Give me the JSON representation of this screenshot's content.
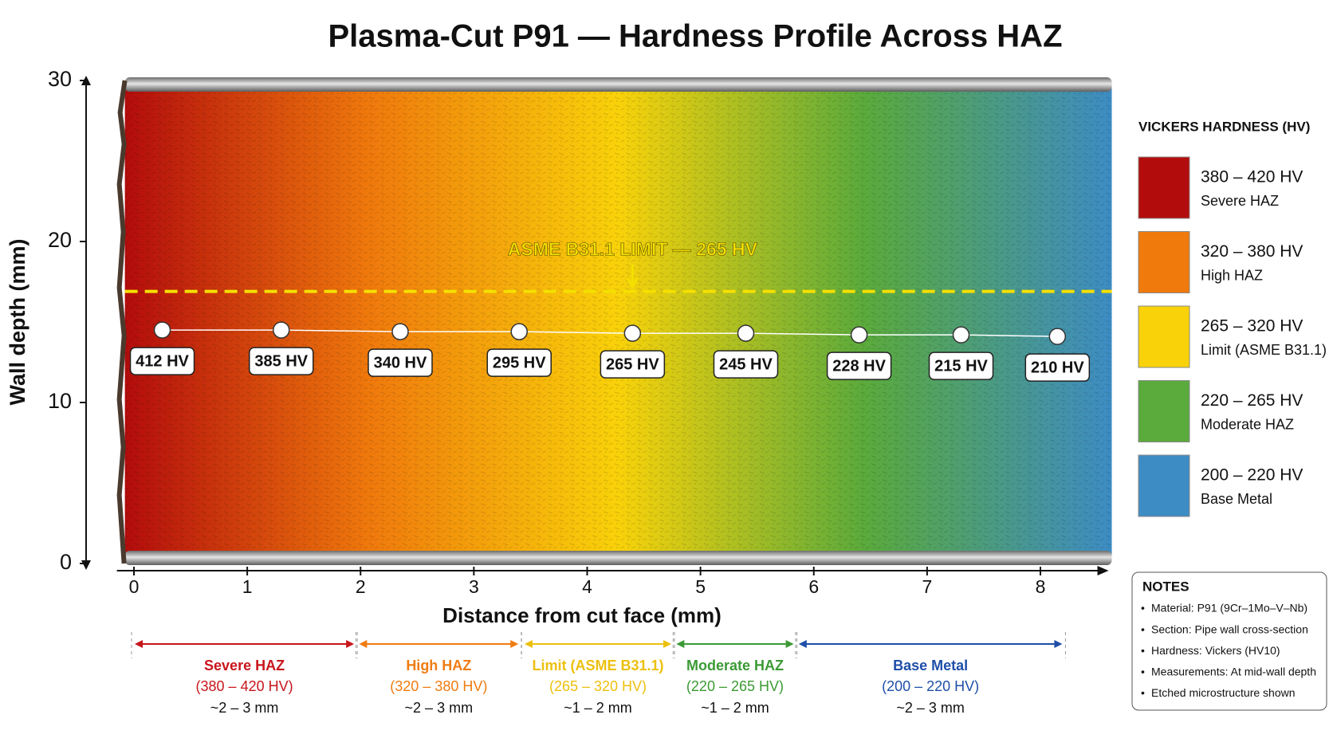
{
  "chart_data": {
    "type": "scatter",
    "title": "Plasma-Cut P91 — Hardness Profile Across HAZ",
    "x_label": "Distance from cut face (mm)",
    "y_label": "Wall depth (mm)",
    "xlim": [
      -0.08,
      8.63
    ],
    "ylim": [
      0,
      30
    ],
    "xticks": [
      0,
      1,
      2,
      3,
      4,
      5,
      6,
      7,
      8
    ],
    "yticks": [
      0,
      10,
      20,
      30
    ],
    "points": {
      "x": [
        0.25,
        1.3,
        2.35,
        3.4,
        4.4,
        5.4,
        6.4,
        7.3,
        8.15
      ],
      "y": [
        14.5,
        14.5,
        14.4,
        14.4,
        14.3,
        14.3,
        14.2,
        14.2,
        14.1
      ],
      "values": [
        412,
        385,
        340,
        295,
        265,
        245,
        228,
        215,
        210
      ],
      "value_labels": [
        "412 HV",
        "385 HV",
        "340 HV",
        "295 HV",
        "265 HV",
        "245 HV",
        "228 HV",
        "215 HV",
        "210 HV"
      ]
    },
    "limit": {
      "label": "ASME B31.1 LIMIT — 265 HV",
      "y": 16.9,
      "color": "#f5e000"
    },
    "legend": {
      "title": "VICKERS HARDNESS (HV)",
      "items": [
        {
          "range": "380 – 420 HV",
          "description": "Severe HAZ",
          "color": "#b30c0c"
        },
        {
          "range": "320 – 380 HV",
          "description": "High HAZ",
          "color": "#f07a0c"
        },
        {
          "range": "265 – 320 HV",
          "description": "Limit (ASME B31.1)",
          "color": "#f9d20a"
        },
        {
          "range": "220 – 265 HV",
          "description": "Moderate HAZ",
          "color": "#5aaa3c"
        },
        {
          "range": "200 – 220 HV",
          "description": "Base Metal",
          "color": "#3d8cc4"
        }
      ]
    },
    "zones": [
      {
        "name": "Severe HAZ",
        "range": "(380 – 420 HV)",
        "width": "~2 – 3 mm",
        "color": "#c8161d",
        "x": [
          0,
          1.95
        ]
      },
      {
        "name": "High HAZ",
        "range": "(320 – 380 HV)",
        "width": "~2 – 3 mm",
        "color": "#f07c12",
        "x": [
          1.98,
          3.4
        ]
      },
      {
        "name": "Limit (ASME B31.1)",
        "range": "(265 – 320 HV)",
        "width": "~1 – 2 mm",
        "color": "#ecc010",
        "x": [
          3.44,
          4.75
        ]
      },
      {
        "name": "Moderate HAZ",
        "range": "(220 – 265 HV)",
        "width": "~1 – 2 mm",
        "color": "#3c9a35",
        "x": [
          4.78,
          5.83
        ]
      },
      {
        "name": "Base Metal",
        "range": "(200 – 220 HV)",
        "width": "~2 – 3 mm",
        "color": "#1e4fa8",
        "x": [
          5.86,
          8.2
        ]
      }
    ],
    "notes": {
      "title": "NOTES",
      "items": [
        "Material: P91 (9Cr–1Mo–V–Nb)",
        "Section: Pipe wall cross-section",
        "Hardness: Vickers (HV10)",
        "Measurements: At mid-wall depth",
        "Etched microstructure shown"
      ]
    }
  }
}
